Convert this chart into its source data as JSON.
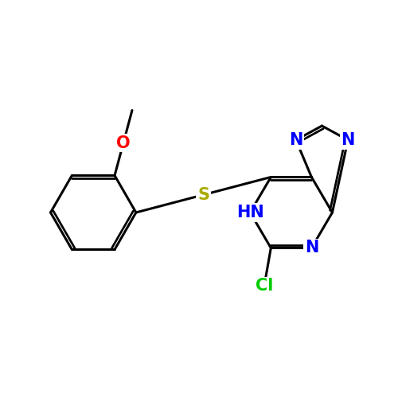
{
  "background_color": "#ffffff",
  "atom_colors": {
    "N": "#0000ff",
    "S": "#aaaa00",
    "O": "#ff0000",
    "Cl": "#00cc00",
    "C": "#000000"
  },
  "bond_color": "#000000",
  "bond_width": 2.2,
  "font_size": 15
}
